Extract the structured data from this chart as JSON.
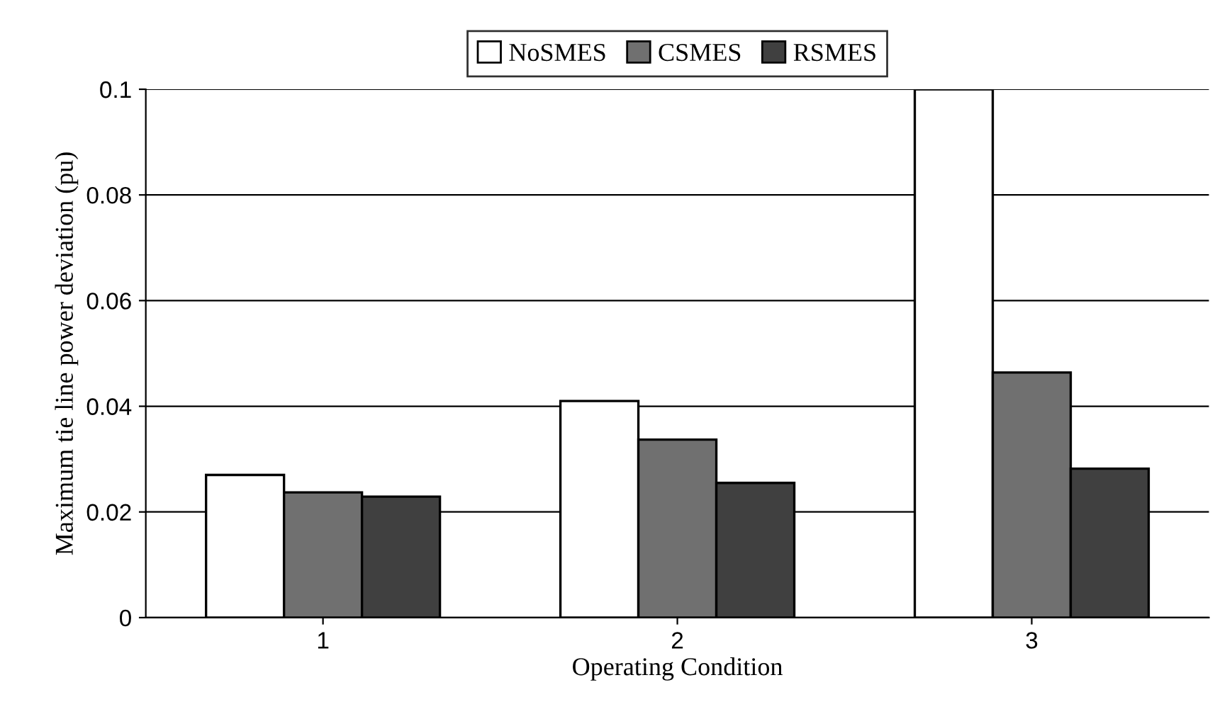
{
  "chart_data": {
    "type": "bar",
    "xlabel": "Operating Condition",
    "ylabel": "Maximum tie line power deviation (pu)",
    "categories": [
      "1",
      "2",
      "3"
    ],
    "series": [
      {
        "name": "NoSMES",
        "color": "#ffffff",
        "values": [
          0.027,
          0.041,
          0.1
        ]
      },
      {
        "name": "CSMES",
        "color": "#707070",
        "values": [
          0.0237,
          0.0337,
          0.0464
        ]
      },
      {
        "name": "RSMES",
        "color": "#404040",
        "values": [
          0.0229,
          0.0255,
          0.0282
        ]
      }
    ],
    "ylim": [
      0,
      0.1
    ],
    "yticks": [
      0,
      0.02,
      0.04,
      0.06,
      0.08,
      0.1
    ],
    "grid": "y",
    "legend": "top"
  }
}
